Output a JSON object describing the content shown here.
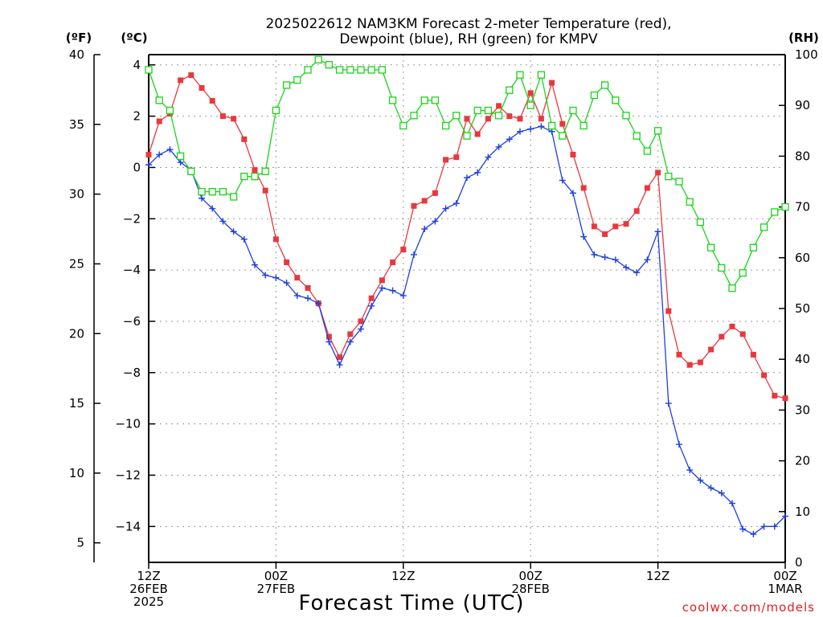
{
  "title_line1": "2025022612 NAM3KM Forecast 2-meter Temperature (red),",
  "title_line2": "Dewpoint (blue), RH (green) for KMPV",
  "xlabel": "Forecast Time (UTC)",
  "credit": "coolwx.com/models",
  "units": {
    "left": "(ºF)",
    "inner": "(ºC)",
    "right": "(RH)"
  },
  "colors": {
    "temperature": "#e8383d",
    "dewpoint": "#1f3fe0",
    "rh": "#19d419"
  },
  "chart_data": {
    "type": "line",
    "x_unit": "forecast hour from 2025-02-26 12Z",
    "x": [
      0,
      1,
      2,
      3,
      4,
      5,
      6,
      7,
      8,
      9,
      10,
      11,
      12,
      13,
      14,
      15,
      16,
      17,
      18,
      19,
      20,
      21,
      22,
      23,
      24,
      25,
      26,
      27,
      28,
      29,
      30,
      31,
      32,
      33,
      34,
      35,
      36,
      37,
      38,
      39,
      40,
      41,
      42,
      43,
      44,
      45,
      46,
      47,
      48,
      49,
      50,
      51,
      52,
      53,
      54,
      55,
      56,
      57,
      58,
      59,
      60
    ],
    "x_ticks": [
      {
        "hour": 0,
        "lines": [
          "12Z",
          "26FEB",
          "2025"
        ]
      },
      {
        "hour": 12,
        "lines": [
          "00Z",
          "27FEB"
        ]
      },
      {
        "hour": 24,
        "lines": [
          "12Z"
        ]
      },
      {
        "hour": 36,
        "lines": [
          "00Z",
          "28FEB"
        ]
      },
      {
        "hour": 48,
        "lines": [
          "12Z"
        ]
      },
      {
        "hour": 60,
        "lines": [
          "00Z",
          "1MAR"
        ]
      }
    ],
    "xlim": [
      0,
      60
    ],
    "celsius_axis": {
      "ylim": [
        -15.4,
        4.4
      ],
      "ticks": [
        4,
        2,
        0,
        -2,
        -4,
        -6,
        -8,
        -10,
        -12,
        -14
      ]
    },
    "fahrenheit_axis": {
      "ylim": [
        3.6,
        40
      ],
      "ticks": [
        40,
        35,
        30,
        25,
        20,
        15,
        10,
        5
      ]
    },
    "rh_axis": {
      "ylim": [
        0,
        100
      ],
      "ticks": [
        100,
        90,
        80,
        70,
        60,
        50,
        40,
        30,
        20,
        10,
        0
      ]
    },
    "grid": true,
    "series": [
      {
        "name": "Temperature",
        "axis": "celsius",
        "marker": "filled-square",
        "values": [
          0.5,
          1.8,
          2.1,
          3.4,
          3.6,
          3.1,
          2.6,
          2.0,
          1.9,
          1.1,
          -0.1,
          -0.9,
          -2.8,
          -3.7,
          -4.3,
          -4.7,
          -5.3,
          -6.6,
          -7.4,
          -6.5,
          -6.0,
          -5.1,
          -4.4,
          -3.7,
          -3.2,
          -1.5,
          -1.3,
          -1.0,
          0.3,
          0.4,
          1.9,
          1.3,
          1.9,
          2.4,
          2.0,
          1.9,
          2.9,
          1.9,
          3.3,
          1.7,
          0.5,
          -0.8,
          -2.3,
          -2.6,
          -2.3,
          -2.2,
          -1.7,
          -0.8,
          -0.2,
          -5.6,
          -7.3,
          -7.7,
          -7.6,
          -7.1,
          -6.6,
          -6.2,
          -6.5,
          -7.3,
          -8.1,
          -8.9,
          -9.0
        ]
      },
      {
        "name": "Dewpoint",
        "axis": "celsius",
        "marker": "plus",
        "values": [
          0.1,
          0.5,
          0.7,
          0.2,
          -0.1,
          -1.2,
          -1.6,
          -2.1,
          -2.5,
          -2.8,
          -3.8,
          -4.2,
          -4.3,
          -4.5,
          -5.0,
          -5.1,
          -5.3,
          -6.8,
          -7.7,
          -6.8,
          -6.3,
          -5.4,
          -4.7,
          -4.8,
          -5.0,
          -3.4,
          -2.4,
          -2.1,
          -1.6,
          -1.4,
          -0.4,
          -0.2,
          0.4,
          0.8,
          1.1,
          1.4,
          1.5,
          1.6,
          1.4,
          -0.5,
          -1.0,
          -2.7,
          -3.4,
          -3.5,
          -3.6,
          -3.9,
          -4.1,
          -3.6,
          -2.5,
          -9.2,
          -10.8,
          -11.8,
          -12.2,
          -12.5,
          -12.7,
          -13.1,
          -14.1,
          -14.3,
          -14.0,
          -14.0,
          -13.6
        ]
      },
      {
        "name": "RH",
        "axis": "rh",
        "marker": "open-square",
        "values": [
          97,
          91,
          89,
          80,
          77,
          73,
          73,
          73,
          72,
          76,
          76,
          77,
          89,
          94,
          95,
          97,
          99,
          98,
          97,
          97,
          97,
          97,
          97,
          91,
          86,
          88,
          91,
          91,
          86,
          88,
          84,
          89,
          89,
          88,
          93,
          96,
          90,
          96,
          86,
          84,
          89,
          86,
          92,
          94,
          91,
          88,
          84,
          81,
          85,
          76,
          75,
          71,
          67,
          62,
          58,
          54,
          57,
          62,
          66,
          69,
          70
        ]
      }
    ]
  }
}
